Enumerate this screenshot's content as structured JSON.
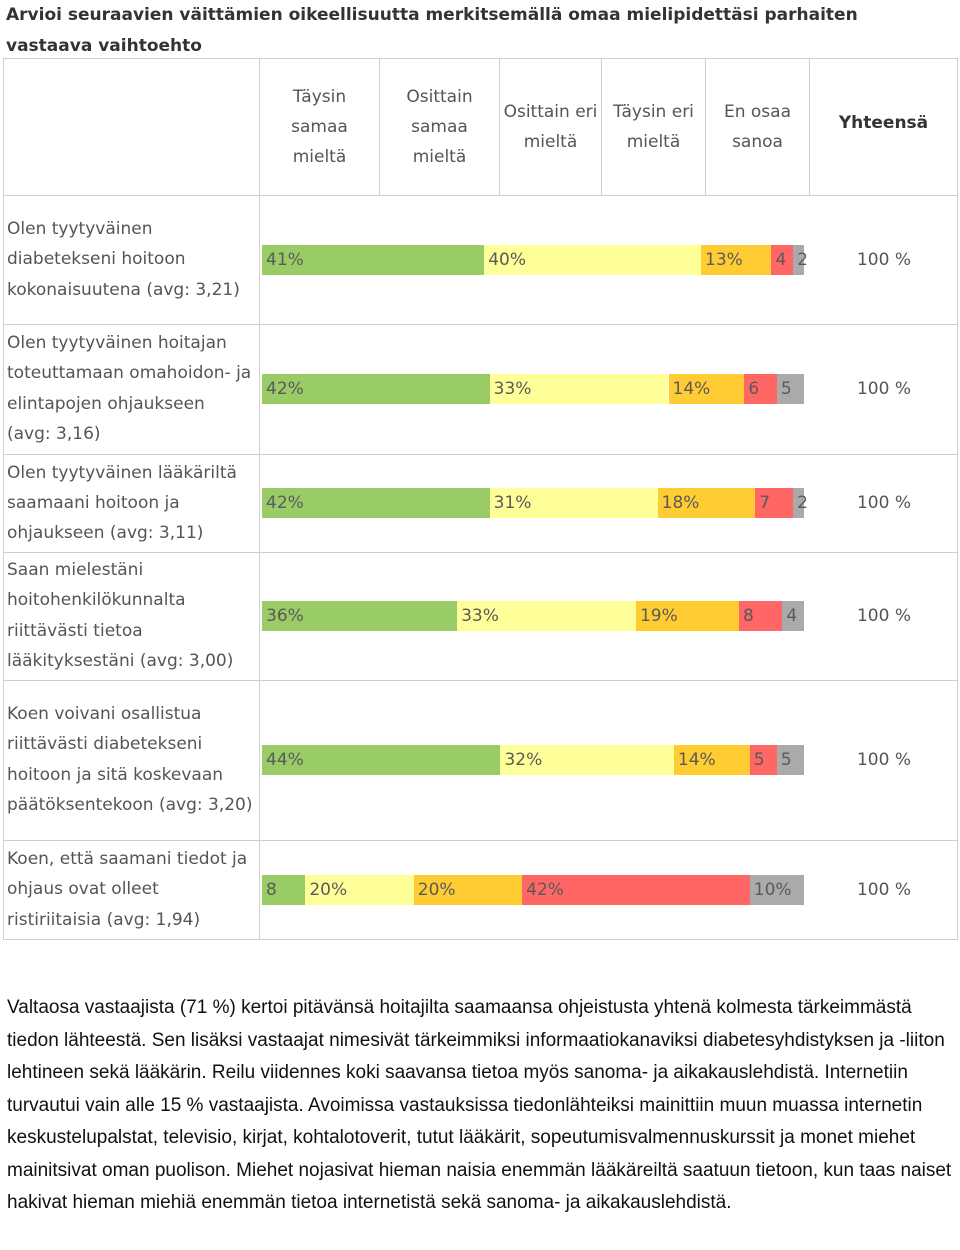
{
  "page": {
    "title": "Arvioi seuraavien väittämien oikeellisuutta merkitsemällä omaa mielipidettäsi parhaiten vastaava vaihtoehto",
    "summary": "Valtaosa vastaajista (71 %) kertoi pitävänsä hoitajilta saamaansa ohjeistusta yhtenä kolmesta tärkeimmästä tiedon lähteestä. Sen lisäksi vastaajat nimesivät tärkeimmiksi informaatiokanaviksi diabetesyhdistyksen ja -liiton lehtineen sekä lääkärin. Reilu viidennes koki saavansa tietoa myös sanoma- ja aikakauslehdistä. Internetiin turvautui vain alle 15 % vastaajista. Avoimissa vastauksissa tiedonlähteiksi mainittiin muun muassa internetin keskustelupalstat, televisio, kirjat, kohtalotoverit, tutut lääkärit, sopeutumisvalmennuskurssit ja monet miehet mainitsivat oman puolison. Miehet nojasivat hieman naisia enemmän lääkäreiltä saatuun tietoon, kun taas naiset hakivat hieman miehiä enemmän tietoa internetistä sekä sanoma- ja aikakauslehdistä."
  },
  "table": {
    "columns": [
      "Täysin samaa mieltä",
      "Osittain samaa mieltä",
      "Osittain eri mieltä",
      "Täysin eri mieltä",
      "En osaa sanoa"
    ],
    "total_header": "Yhteensä"
  },
  "chart_data": {
    "type": "bar",
    "stacked": true,
    "orientation": "horizontal",
    "title": "Arvioi seuraavien väittämien oikeellisuutta merkitsemällä omaa mielipidettäsi parhaiten vastaava vaihtoehto",
    "categories": [
      "Olen tyytyväinen diabetekseni hoitoon kokonaisuutena (avg: 3,21)",
      "Olen tyytyväinen hoitajan toteuttamaan omahoidon- ja elintapojen ohjaukseen (avg: 3,16)",
      "Olen tyytyväinen lääkäriltä saamaani hoitoon ja ohjaukseen (avg: 3,11)",
      "Saan mielestäni hoitohenkilökunnalta riittävästi tietoa lääkityksestäni (avg: 3,00)",
      "Koen voivani osallistua riittävästi diabetekseni hoitoon ja sitä koskevaan päätöksentekoon (avg: 3,20)",
      "Koen, että saamani tiedot ja ohjaus ovat olleet ristiriitaisia (avg: 1,94)"
    ],
    "series": [
      {
        "name": "Täysin samaa mieltä",
        "color": "#99cc66",
        "values": [
          41,
          42,
          42,
          36,
          44,
          8
        ],
        "labels": [
          "41%",
          "42%",
          "42%",
          "36%",
          "44%",
          "8"
        ]
      },
      {
        "name": "Osittain samaa mieltä",
        "color": "#ffff99",
        "values": [
          40,
          33,
          31,
          33,
          32,
          20
        ],
        "labels": [
          "40%",
          "33%",
          "31%",
          "33%",
          "32%",
          "20%"
        ]
      },
      {
        "name": "Osittain eri mieltä",
        "color": "#ffcc33",
        "values": [
          13,
          14,
          18,
          19,
          14,
          20
        ],
        "labels": [
          "13%",
          "14%",
          "18%",
          "19%",
          "14%",
          "20%"
        ]
      },
      {
        "name": "Täysin eri mieltä",
        "color": "#ff6666",
        "values": [
          4,
          6,
          7,
          8,
          5,
          42
        ],
        "labels": [
          "4",
          "6",
          "7",
          "8",
          "5",
          "42%"
        ]
      },
      {
        "name": "En osaa sanoa",
        "color": "#aaaaaa",
        "values": [
          2,
          5,
          2,
          4,
          5,
          10
        ],
        "labels": [
          "2",
          "5",
          "2",
          "4",
          "5",
          "10%"
        ]
      }
    ],
    "totals": [
      "100 %",
      "100 %",
      "100 %",
      "100 %",
      "100 %",
      "100 %"
    ],
    "xlim": [
      0,
      100
    ]
  }
}
